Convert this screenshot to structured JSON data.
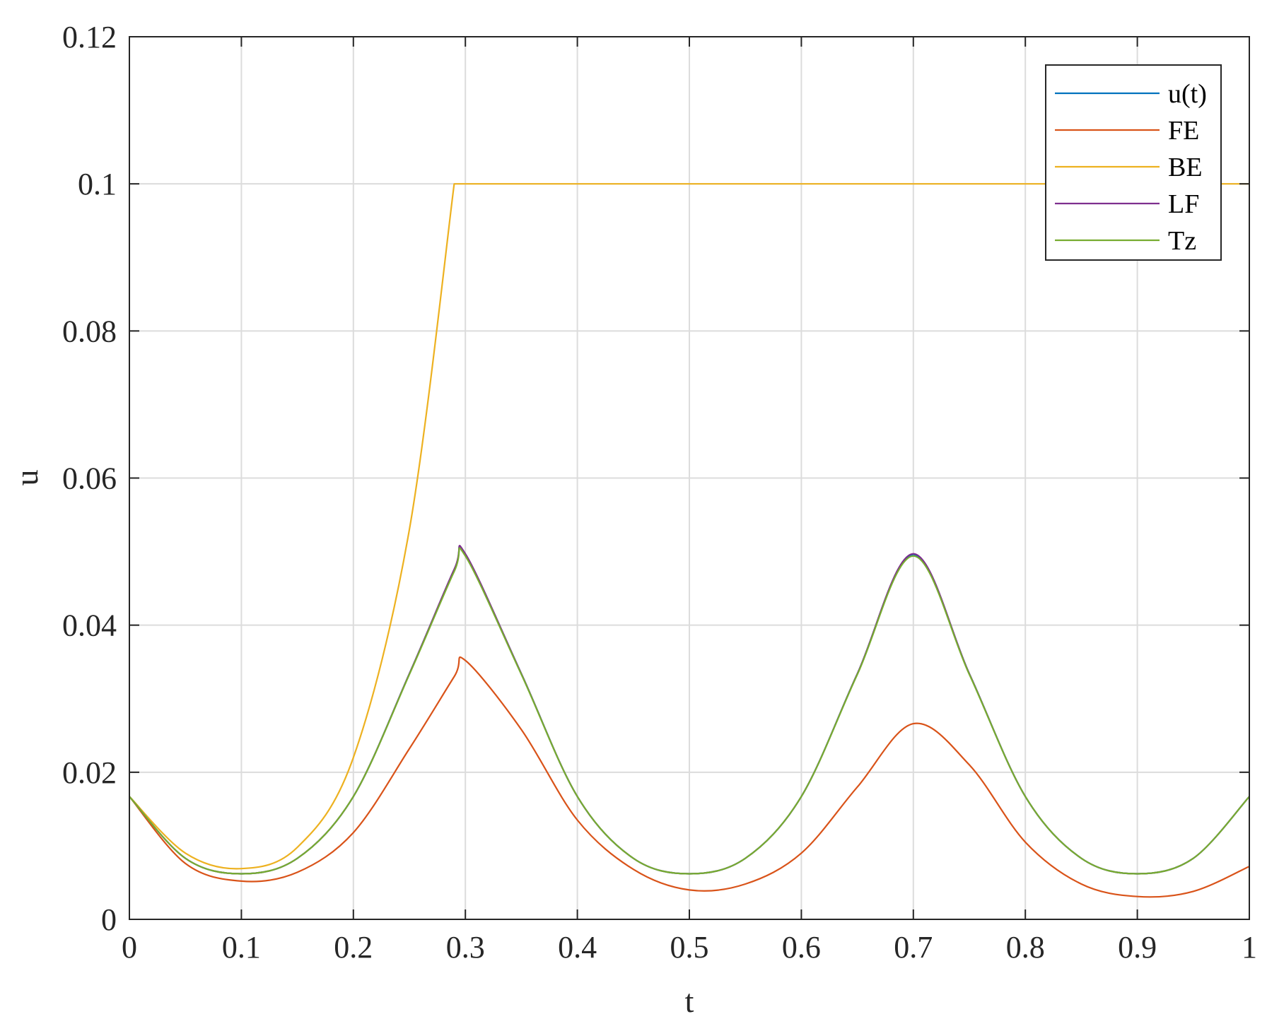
{
  "chart_data": {
    "type": "line",
    "title": "",
    "xlabel": "t",
    "ylabel": "u",
    "xlim": [
      0,
      1
    ],
    "ylim": [
      0,
      0.12
    ],
    "xticks": [
      0,
      0.1,
      0.2,
      0.3,
      0.4,
      0.5,
      0.6,
      0.7,
      0.8,
      0.9,
      1
    ],
    "xtick_labels": [
      "0",
      "0.1",
      "0.2",
      "0.3",
      "0.4",
      "0.5",
      "0.6",
      "0.7",
      "0.8",
      "0.9",
      "1"
    ],
    "yticks": [
      0,
      0.02,
      0.04,
      0.06,
      0.08,
      0.1,
      0.12
    ],
    "ytick_labels": [
      "0",
      "0.02",
      "0.04",
      "0.06",
      "0.08",
      "0.1",
      "0.12"
    ],
    "grid": true,
    "legend_position": "top-right",
    "x": [
      0,
      0.05,
      0.1,
      0.15,
      0.2,
      0.25,
      0.29,
      0.3,
      0.35,
      0.4,
      0.45,
      0.5,
      0.55,
      0.6,
      0.65,
      0.7,
      0.75,
      0.8,
      0.85,
      0.9,
      0.95,
      1
    ],
    "series": [
      {
        "name": "u(t)",
        "color": "#0072BD",
        "values": [
          0.0167,
          0.0083,
          0.0062,
          0.0083,
          0.0167,
          0.0334,
          0.0475,
          0.0496,
          0.0334,
          0.0167,
          0.0083,
          0.0062,
          0.0083,
          0.0167,
          0.0334,
          0.0496,
          0.0334,
          0.0167,
          0.0083,
          0.0062,
          0.0083,
          0.0167
        ]
      },
      {
        "name": "FE",
        "color": "#D95319",
        "values": [
          0.0167,
          0.0076,
          0.0052,
          0.0064,
          0.0118,
          0.0232,
          0.033,
          0.0352,
          0.0258,
          0.0135,
          0.0068,
          0.004,
          0.0048,
          0.009,
          0.018,
          0.0266,
          0.021,
          0.0105,
          0.0048,
          0.0031,
          0.0038,
          0.0072
        ]
      },
      {
        "name": "BE",
        "color": "#EDB120",
        "values": [
          0.0167,
          0.009,
          0.0069,
          0.0098,
          0.022,
          0.053,
          0.1,
          0.1,
          0.1,
          0.1,
          0.1,
          0.1,
          0.1,
          0.1,
          0.1,
          0.1,
          0.1,
          0.1,
          0.1,
          0.1,
          0.1,
          0.1
        ]
      },
      {
        "name": "LF",
        "color": "#7E2F8E",
        "values": [
          0.0167,
          0.0083,
          0.0062,
          0.0083,
          0.0167,
          0.0334,
          0.0476,
          0.0497,
          0.0334,
          0.0167,
          0.0083,
          0.0062,
          0.0083,
          0.0167,
          0.0334,
          0.0497,
          0.0334,
          0.0167,
          0.0083,
          0.0062,
          0.0083,
          0.0167
        ]
      },
      {
        "name": "Tz",
        "color": "#77AC30",
        "values": [
          0.0167,
          0.0083,
          0.0062,
          0.0083,
          0.0167,
          0.0333,
          0.0473,
          0.0494,
          0.0333,
          0.0167,
          0.0083,
          0.0062,
          0.0083,
          0.0167,
          0.0333,
          0.0494,
          0.0333,
          0.0167,
          0.0083,
          0.0062,
          0.0083,
          0.0167
        ]
      }
    ]
  }
}
